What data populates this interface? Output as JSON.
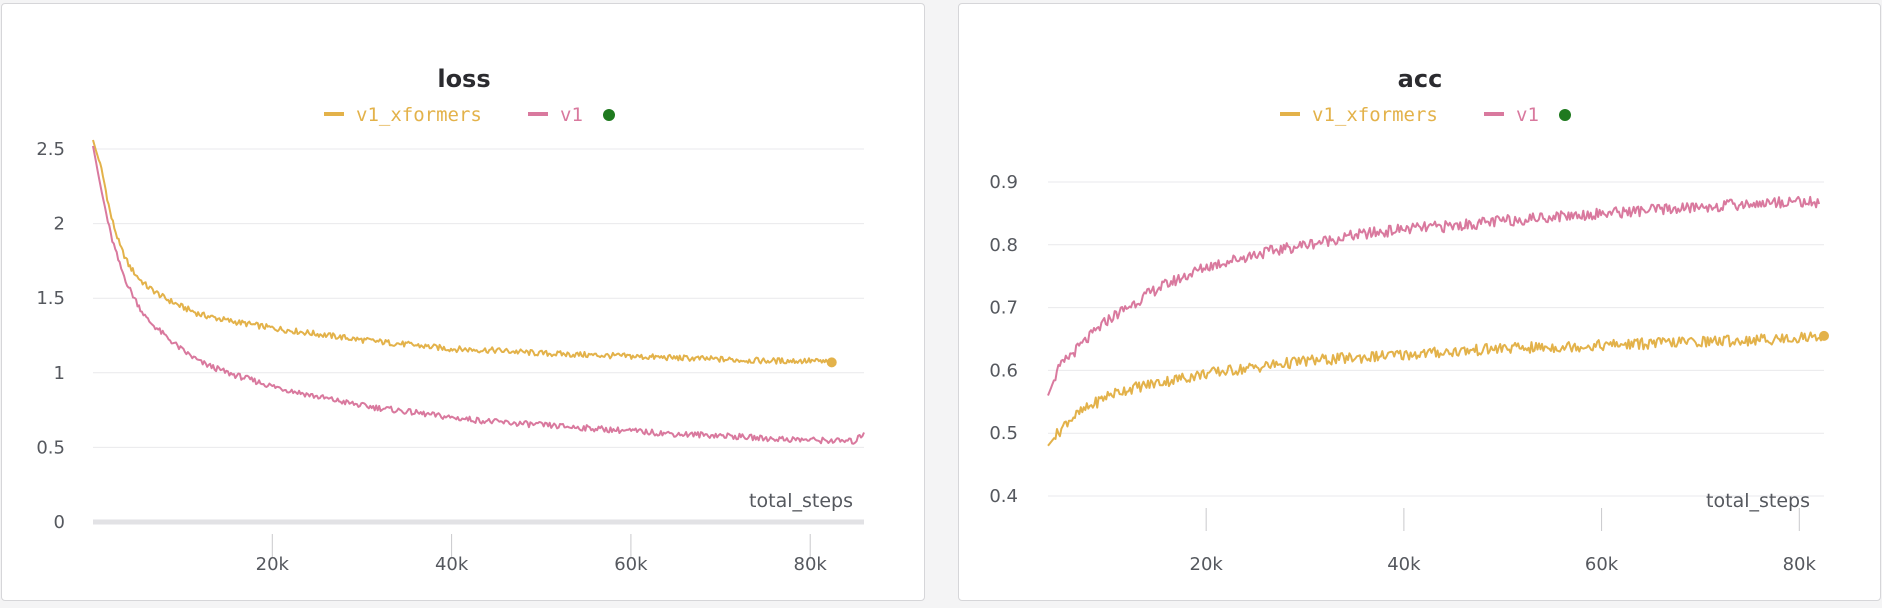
{
  "colors": {
    "v1_xformers": "#e3b24a",
    "v1": "#d9799e",
    "status_dot": "#1f7a1f",
    "axis": "#e2e2e5",
    "tick": "#c9c9cc"
  },
  "chart_data": [
    {
      "type": "line",
      "title": "loss",
      "xlabel": "total_steps",
      "ylabel": "",
      "xlim": [
        0,
        86000
      ],
      "ylim": [
        0,
        2.5
      ],
      "x_ticks": [
        20000,
        40000,
        60000,
        80000
      ],
      "x_tick_labels": [
        "20k",
        "40k",
        "60k",
        "80k"
      ],
      "y_ticks": [
        0,
        0.5,
        1,
        1.5,
        2,
        2.5
      ],
      "y_tick_labels": [
        "0",
        "0.5",
        "1",
        "1.5",
        "2",
        "2.5"
      ],
      "grid": true,
      "legend": "top-center",
      "series": [
        {
          "name": "v1_xformers",
          "color": "#e3b24a",
          "end_marker": true,
          "points": [
            [
              0,
              2.56
            ],
            [
              1000,
              2.35
            ],
            [
              2000,
              2.05
            ],
            [
              3000,
              1.85
            ],
            [
              4000,
              1.72
            ],
            [
              5000,
              1.64
            ],
            [
              6000,
              1.58
            ],
            [
              8000,
              1.5
            ],
            [
              10000,
              1.44
            ],
            [
              12000,
              1.39
            ],
            [
              15000,
              1.35
            ],
            [
              20000,
              1.3
            ],
            [
              25000,
              1.26
            ],
            [
              30000,
              1.22
            ],
            [
              35000,
              1.19
            ],
            [
              40000,
              1.16
            ],
            [
              45000,
              1.15
            ],
            [
              50000,
              1.13
            ],
            [
              55000,
              1.12
            ],
            [
              60000,
              1.11
            ],
            [
              65000,
              1.1
            ],
            [
              70000,
              1.09
            ],
            [
              75000,
              1.08
            ],
            [
              80000,
              1.08
            ],
            [
              82400,
              1.07
            ]
          ]
        },
        {
          "name": "v1",
          "color": "#d9799e",
          "end_marker": false,
          "points": [
            [
              0,
              2.52
            ],
            [
              1000,
              2.2
            ],
            [
              2000,
              1.92
            ],
            [
              3000,
              1.72
            ],
            [
              4000,
              1.57
            ],
            [
              5000,
              1.46
            ],
            [
              6000,
              1.36
            ],
            [
              8000,
              1.25
            ],
            [
              10000,
              1.15
            ],
            [
              12000,
              1.07
            ],
            [
              15000,
              1.0
            ],
            [
              20000,
              0.91
            ],
            [
              25000,
              0.84
            ],
            [
              30000,
              0.78
            ],
            [
              35000,
              0.74
            ],
            [
              40000,
              0.7
            ],
            [
              45000,
              0.67
            ],
            [
              50000,
              0.65
            ],
            [
              55000,
              0.63
            ],
            [
              60000,
              0.61
            ],
            [
              65000,
              0.59
            ],
            [
              70000,
              0.58
            ],
            [
              75000,
              0.56
            ],
            [
              80000,
              0.55
            ],
            [
              85000,
              0.54
            ],
            [
              86000,
              0.6
            ]
          ]
        }
      ]
    },
    {
      "type": "line",
      "title": "acc",
      "xlabel": "total_steps",
      "ylabel": "",
      "xlim": [
        4000,
        82500
      ],
      "ylim": [
        0.4,
        0.9
      ],
      "x_ticks": [
        20000,
        40000,
        60000,
        80000
      ],
      "x_tick_labels": [
        "20k",
        "40k",
        "60k",
        "80k"
      ],
      "y_ticks": [
        0.4,
        0.5,
        0.6,
        0.7,
        0.8,
        0.9
      ],
      "y_tick_labels": [
        "0.4",
        "0.5",
        "0.6",
        "0.7",
        "0.8",
        "0.9"
      ],
      "grid": true,
      "legend": "top-center",
      "series": [
        {
          "name": "v1_xformers",
          "color": "#e3b24a",
          "end_marker": true,
          "points": [
            [
              4000,
              0.48
            ],
            [
              5000,
              0.5
            ],
            [
              6000,
              0.52
            ],
            [
              8000,
              0.54
            ],
            [
              10000,
              0.56
            ],
            [
              12000,
              0.57
            ],
            [
              15000,
              0.58
            ],
            [
              20000,
              0.595
            ],
            [
              25000,
              0.605
            ],
            [
              30000,
              0.615
            ],
            [
              35000,
              0.62
            ],
            [
              40000,
              0.625
            ],
            [
              45000,
              0.63
            ],
            [
              50000,
              0.635
            ],
            [
              55000,
              0.637
            ],
            [
              60000,
              0.64
            ],
            [
              65000,
              0.643
            ],
            [
              70000,
              0.646
            ],
            [
              75000,
              0.648
            ],
            [
              80000,
              0.652
            ],
            [
              82500,
              0.655
            ]
          ]
        },
        {
          "name": "v1",
          "color": "#d9799e",
          "end_marker": false,
          "points": [
            [
              4000,
              0.56
            ],
            [
              5000,
              0.6
            ],
            [
              6000,
              0.62
            ],
            [
              8000,
              0.65
            ],
            [
              10000,
              0.68
            ],
            [
              12000,
              0.7
            ],
            [
              15000,
              0.73
            ],
            [
              20000,
              0.765
            ],
            [
              25000,
              0.785
            ],
            [
              30000,
              0.8
            ],
            [
              35000,
              0.815
            ],
            [
              40000,
              0.825
            ],
            [
              45000,
              0.83
            ],
            [
              50000,
              0.838
            ],
            [
              55000,
              0.845
            ],
            [
              60000,
              0.85
            ],
            [
              65000,
              0.855
            ],
            [
              70000,
              0.86
            ],
            [
              75000,
              0.865
            ],
            [
              80000,
              0.87
            ],
            [
              82000,
              0.865
            ]
          ]
        }
      ]
    }
  ]
}
